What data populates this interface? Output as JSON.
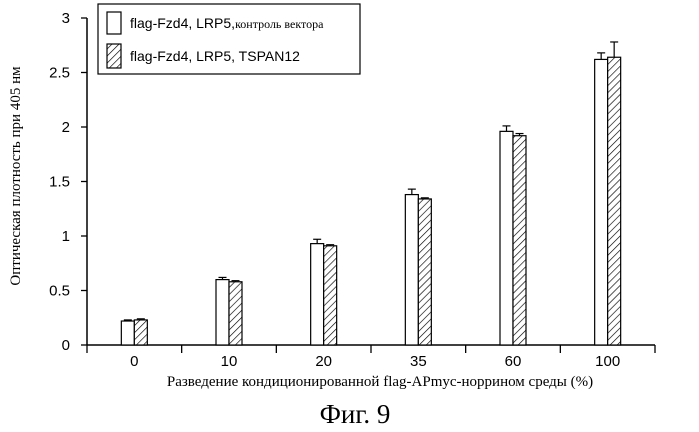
{
  "chart_data": {
    "type": "bar",
    "categories": [
      "0",
      "10",
      "20",
      "35",
      "60",
      "100"
    ],
    "series": [
      {
        "name_main": "flag-Fzd4, LRP5,",
        "name_suffix": "контроль вектора",
        "pattern": "plain",
        "values": [
          0.22,
          0.6,
          0.93,
          1.38,
          1.96,
          2.62
        ],
        "errors": [
          0.01,
          0.02,
          0.04,
          0.05,
          0.05,
          0.06
        ]
      },
      {
        "name_main": "flag-Fzd4, LRP5, TSPAN12",
        "name_suffix": "",
        "pattern": "hatched",
        "values": [
          0.23,
          0.58,
          0.91,
          1.34,
          1.92,
          2.64
        ],
        "errors": [
          0.01,
          0.01,
          0.01,
          0.01,
          0.02,
          0.14
        ]
      }
    ],
    "ylim": [
      0,
      3
    ],
    "yticks": [
      "0",
      "0.5",
      "1",
      "1.5",
      "2",
      "2.5",
      "3"
    ],
    "ylabel": "Оптическая плотность при 405 нм",
    "xlabel": "Разведение кондиционированной flag-APmyc-норрином среды (%)",
    "legend_position": "top-left",
    "grid": false
  },
  "caption": "Фиг. 9"
}
